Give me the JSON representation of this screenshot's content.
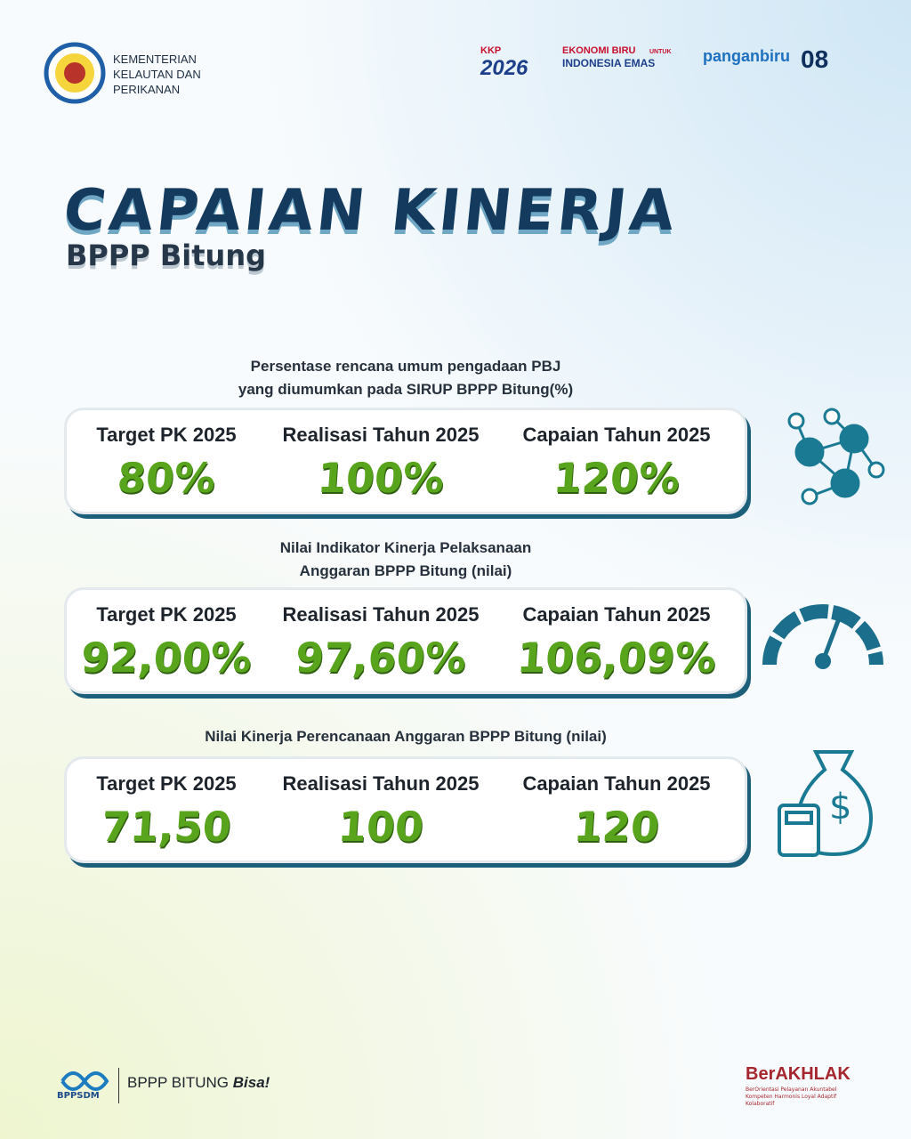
{
  "header": {
    "ministry": [
      "KEMENTERIAN",
      "KELAUTAN DAN",
      "PERIKANAN"
    ],
    "logos": [
      {
        "top": "KKP",
        "main": "2026"
      },
      {
        "top": "EKONOMI BIRU",
        "tag": "UNTUK",
        "main": "INDONESIA EMAS"
      },
      {
        "main": "panganbiru"
      },
      {
        "main": "08"
      }
    ]
  },
  "title": "CAPAIAN KINERJA",
  "subtitle": "BPPP Bitung",
  "sections": [
    {
      "caption": [
        "Persentase rencana umum pengadaan PBJ",
        "yang diumumkan pada SIRUP BPPP Bitung(%)"
      ],
      "cells": [
        {
          "label": "Target PK 2025",
          "value": "80%"
        },
        {
          "label": "Realisasi Tahun 2025",
          "value": "100%"
        },
        {
          "label": "Capaian Tahun 2025",
          "value": "120%"
        }
      ]
    },
    {
      "caption": [
        "Nilai Indikator Kinerja Pelaksanaan",
        "Anggaran BPPP Bitung (nilai)"
      ],
      "cells": [
        {
          "label": "Target PK 2025",
          "value": "92,00%"
        },
        {
          "label": "Realisasi Tahun 2025",
          "value": "97,60%"
        },
        {
          "label": "Capaian Tahun 2025",
          "value": "106,09%"
        }
      ]
    },
    {
      "caption": [
        "Nilai Kinerja Perencanaan Anggaran BPPP Bitung (nilai)"
      ],
      "cells": [
        {
          "label": "Target PK 2025",
          "value": "71,50"
        },
        {
          "label": "Realisasi Tahun 2025",
          "value": "100"
        },
        {
          "label": "Capaian Tahun 2025",
          "value": "120"
        }
      ]
    }
  ],
  "footer": {
    "agency": "BPPSDM",
    "slogan": "BPPP BITUNG",
    "slogan_tail": "Bisa!",
    "brand": "BerAKHLAK",
    "brand_tagline": "BerOrientasi Pelayanan Akuntabel Kompeten Harmonis Loyal Adaptif Kolaboratif"
  }
}
